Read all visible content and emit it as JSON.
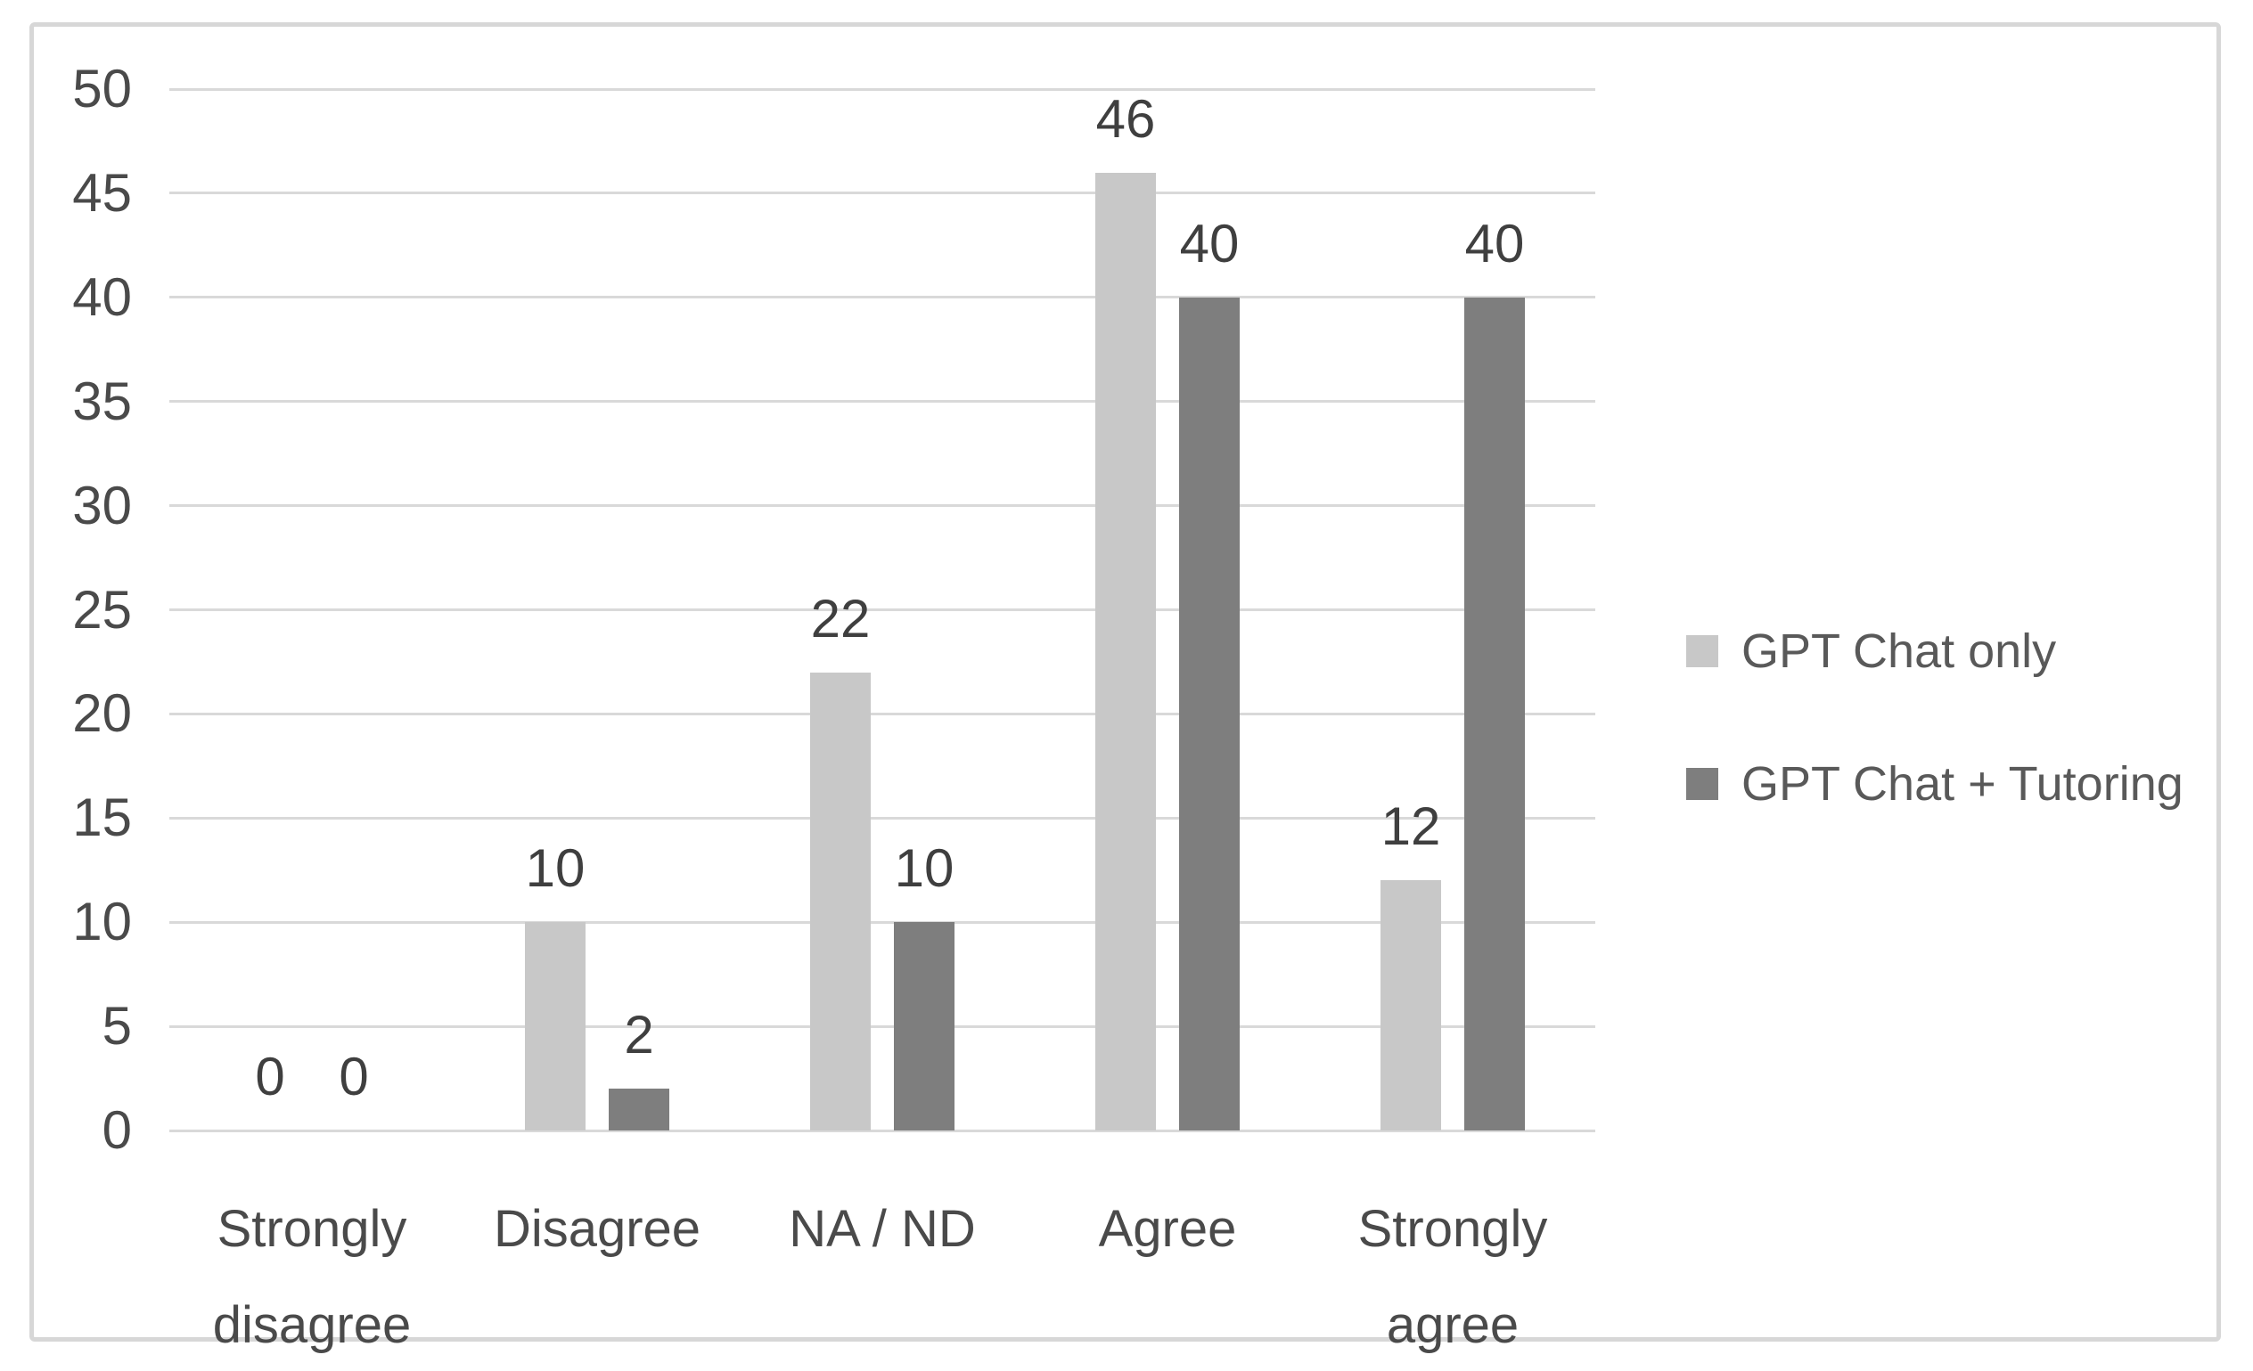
{
  "chart_data": {
    "type": "bar",
    "title": "",
    "categories": [
      "Strongly disagree",
      "Disagree",
      "NA / ND",
      "Agree",
      "Strongly agree"
    ],
    "category_label_lines": [
      [
        "Strongly",
        "disagree"
      ],
      [
        "Disagree"
      ],
      [
        "NA / ND"
      ],
      [
        "Agree"
      ],
      [
        "Strongly",
        "agree"
      ]
    ],
    "series": [
      {
        "name": "GPT Chat only",
        "values": [
          0,
          10,
          22,
          46,
          12
        ],
        "color": "#c8c8c8"
      },
      {
        "name": "GPT Chat + Tutoring",
        "values": [
          0,
          2,
          10,
          40,
          40
        ],
        "color": "#7e7e7e"
      }
    ],
    "data_labels": [
      {
        "category": "Strongly disagree",
        "GPT Chat only": "0",
        "GPT Chat + Tutoring": "0"
      },
      {
        "category": "Disagree",
        "GPT Chat only": "10",
        "GPT Chat + Tutoring": "2"
      },
      {
        "category": "NA / ND",
        "GPT Chat only": "22",
        "GPT Chat + Tutoring": "10"
      },
      {
        "category": "Agree",
        "GPT Chat only": "46",
        "GPT Chat + Tutoring": "40"
      },
      {
        "category": "Strongly agree",
        "GPT Chat only": "12",
        "GPT Chat + Tutoring": "40"
      }
    ],
    "xlabel": "",
    "ylabel": "",
    "ylim": [
      0,
      50
    ],
    "ytick_step": 5,
    "yticks": [
      "0",
      "5",
      "10",
      "15",
      "20",
      "25",
      "30",
      "35",
      "40",
      "45",
      "50"
    ],
    "grid": true,
    "legend_position": "right",
    "legend_entries": [
      "GPT Chat only",
      "GPT Chat + Tutoring"
    ]
  },
  "colors": {
    "series_1": "#c8c8c8",
    "series_2": "#7e7e7e",
    "gridline": "#d9d9d9",
    "frame_border": "#d7d7d7",
    "tick_text": "#4a4a4a",
    "data_label_text": "#3f3f3f",
    "legend_text": "#595959",
    "background": "#ffffff"
  }
}
